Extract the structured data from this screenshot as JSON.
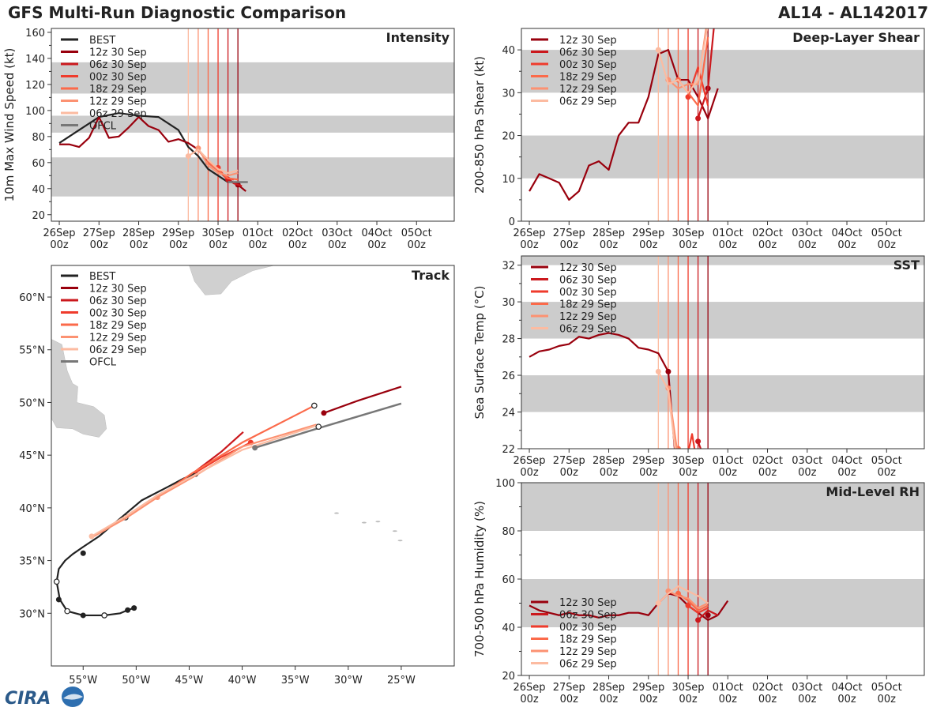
{
  "header": {
    "title": "GFS Multi-Run Diagnostic Comparison",
    "storm_id": "AL14 - AL142017"
  },
  "logo": {
    "text": "CIRA"
  },
  "time_axis": {
    "ticks": [
      "26Sep\n00z",
      "27Sep\n00z",
      "28Sep\n00z",
      "29Sep\n00z",
      "30Sep\n00z",
      "01Oct\n00z",
      "02Oct\n00z",
      "03Oct\n00z",
      "04Oct\n00z",
      "05Oct\n00z"
    ],
    "run_lines": [
      {
        "day": 3.25,
        "color": "#fcbba1"
      },
      {
        "day": 3.5,
        "color": "#fc9272"
      },
      {
        "day": 3.75,
        "color": "#fb6a4a"
      },
      {
        "day": 4.0,
        "color": "#ef3b2c"
      },
      {
        "day": 4.25,
        "color": "#cb181d"
      },
      {
        "day": 4.5,
        "color": "#99000d"
      }
    ]
  },
  "legend": {
    "best": {
      "label": "BEST",
      "color": "#222222"
    },
    "ofcl": {
      "label": "OFCL",
      "color": "#777777"
    },
    "runs": [
      {
        "label": "12z 30 Sep",
        "color": "#99000d"
      },
      {
        "label": "06z 30 Sep",
        "color": "#cb181d"
      },
      {
        "label": "00z 30 Sep",
        "color": "#ef3b2c"
      },
      {
        "label": "18z 29 Sep",
        "color": "#fb6a4a"
      },
      {
        "label": "12z 29 Sep",
        "color": "#fc9272"
      },
      {
        "label": "06z 29 Sep",
        "color": "#fcbba1"
      }
    ]
  },
  "chart_data": [
    {
      "id": "intensity",
      "type": "line",
      "title": "Intensity",
      "ylabel": "10m Max Wind Speed (kt)",
      "ylim": [
        15,
        163
      ],
      "yticks": [
        20,
        40,
        60,
        80,
        100,
        120,
        140,
        160
      ],
      "bands": [
        [
          34,
          64
        ],
        [
          83,
          96
        ],
        [
          113,
          137
        ]
      ],
      "series": [
        {
          "name": "BEST",
          "color": "#222222",
          "marker": false,
          "x": [
            0,
            0.5,
            1,
            1.5,
            2,
            2.5,
            3,
            3.25,
            3.5,
            3.75,
            4,
            4.25
          ],
          "y": [
            75,
            85,
            95,
            98,
            96,
            95,
            85,
            72,
            65,
            55,
            50,
            45
          ]
        },
        {
          "name": "12z 30 Sep",
          "color": "#99000d",
          "x": [
            0,
            0.25,
            0.5,
            0.75,
            1,
            1.25,
            1.5,
            1.75,
            2,
            2.25,
            2.5,
            2.75,
            3,
            3.25,
            3.5,
            3.75,
            4,
            4.25,
            4.5,
            4.7
          ],
          "y": [
            74,
            74,
            72,
            79,
            95,
            79,
            80,
            87,
            95,
            88,
            85,
            76,
            78,
            75,
            70,
            60,
            54,
            47,
            43,
            38
          ],
          "dot": [
            4.5,
            43
          ]
        },
        {
          "name": "06z 30 Sep",
          "color": "#cb181d",
          "x": [
            4.25,
            4.4,
            4.6
          ],
          "y": [
            47,
            44,
            42
          ],
          "dot": [
            4.25,
            47
          ]
        },
        {
          "name": "00z 30 Sep",
          "color": "#ef3b2c",
          "x": [
            4.0,
            4.2,
            4.4
          ],
          "y": [
            56,
            48,
            47
          ],
          "dot": [
            4.0,
            56
          ]
        },
        {
          "name": "18z 29 Sep",
          "color": "#fb6a4a",
          "x": [
            3.75,
            4.0,
            4.25,
            4.5
          ],
          "y": [
            60,
            54,
            48,
            47
          ],
          "dot": [
            3.75,
            60
          ]
        },
        {
          "name": "12z 29 Sep",
          "color": "#fc9272",
          "x": [
            3.5,
            3.75,
            4.0,
            4.25,
            4.5
          ],
          "y": [
            71,
            58,
            52,
            50,
            52
          ],
          "dot": [
            3.5,
            71
          ]
        },
        {
          "name": "06z 29 Sep",
          "color": "#fcbba1",
          "x": [
            3.25,
            3.5,
            3.75,
            4.0,
            4.25,
            4.5
          ],
          "y": [
            65,
            70,
            62,
            55,
            52,
            54
          ],
          "dot": [
            3.25,
            65
          ]
        },
        {
          "name": "OFCL",
          "color": "#777777",
          "width": 2.5,
          "x": [
            4.25,
            4.75
          ],
          "y": [
            45,
            45
          ]
        }
      ]
    },
    {
      "id": "shear",
      "type": "line",
      "title": "Deep-Layer Shear",
      "ylabel": "200-850 hPa Shear (kt)",
      "ylim": [
        0,
        45
      ],
      "yticks": [
        0,
        10,
        20,
        30,
        40
      ],
      "bands": [
        [
          10,
          20
        ],
        [
          30,
          40
        ]
      ],
      "series": [
        {
          "name": "12z 30 Sep",
          "color": "#99000d",
          "x": [
            0,
            0.25,
            0.5,
            0.75,
            1,
            1.25,
            1.5,
            1.75,
            2,
            2.25,
            2.5,
            2.75,
            3,
            3.25,
            3.5,
            3.75,
            4,
            4.25,
            4.5,
            4.75
          ],
          "y": [
            7,
            11,
            10,
            9,
            5,
            7,
            13,
            14,
            12,
            20,
            23,
            23,
            29,
            39,
            40,
            33,
            33,
            29,
            24,
            31
          ],
          "dot": [
            4.5,
            31
          ]
        },
        {
          "name": "06z 30 Sep",
          "color": "#cb181d",
          "x": [
            4.25,
            4.5,
            4.7
          ],
          "y": [
            24,
            31,
            50
          ],
          "dot": [
            4.25,
            24
          ]
        },
        {
          "name": "00z 30 Sep",
          "color": "#ef3b2c",
          "x": [
            4.0,
            4.25,
            4.5
          ],
          "y": [
            29,
            36,
            27
          ],
          "dot": [
            4.0,
            29
          ]
        },
        {
          "name": "18z 29 Sep",
          "color": "#fb6a4a",
          "x": [
            3.75,
            4.0,
            4.25,
            4.5
          ],
          "y": [
            33,
            30,
            27,
            43
          ],
          "dot": [
            3.75,
            33
          ]
        },
        {
          "name": "12z 29 Sep",
          "color": "#fc9272",
          "x": [
            3.5,
            3.75,
            4.0,
            4.25,
            4.5
          ],
          "y": [
            33,
            31,
            32,
            32,
            48
          ],
          "dot": [
            3.5,
            33
          ]
        },
        {
          "name": "06z 29 Sep",
          "color": "#fcbba1",
          "x": [
            3.25,
            3.5,
            3.75,
            4.0,
            4.25,
            4.5
          ],
          "y": [
            40,
            32,
            33,
            30,
            33,
            46
          ],
          "dot": [
            3.25,
            40
          ]
        }
      ]
    },
    {
      "id": "sst",
      "type": "line",
      "title": "SST",
      "ylabel": "Sea Surface Temp (°C)",
      "ylim": [
        22,
        32.5
      ],
      "yticks": [
        22,
        24,
        26,
        28,
        30,
        32
      ],
      "bands": [
        [
          24,
          26
        ],
        [
          28,
          30
        ],
        [
          32,
          32.5
        ]
      ],
      "series": [
        {
          "name": "12z 30 Sep",
          "color": "#99000d",
          "x": [
            0,
            0.25,
            0.5,
            0.75,
            1,
            1.25,
            1.5,
            1.75,
            2,
            2.25,
            2.5,
            2.75,
            3,
            3.25,
            3.5,
            3.7
          ],
          "y": [
            27.0,
            27.3,
            27.4,
            27.6,
            27.7,
            28.1,
            28.0,
            28.2,
            28.3,
            28.2,
            28.0,
            27.5,
            27.4,
            27.2,
            26.2,
            21.0
          ],
          "dot": [
            3.5,
            26.2
          ]
        },
        {
          "name": "06z 30 Sep",
          "color": "#cb181d",
          "x": [
            4.25,
            4.4
          ],
          "y": [
            22.4,
            21.5
          ],
          "dot": [
            4.25,
            22.4
          ]
        },
        {
          "name": "00z 30 Sep",
          "color": "#ef3b2c",
          "x": [
            4.0,
            4.1,
            4.2,
            4.3
          ],
          "y": [
            21.8,
            22.8,
            21.5,
            21.6
          ],
          "dot": [
            4.0,
            21.8
          ]
        },
        {
          "name": "18z 29 Sep",
          "color": "#fb6a4a",
          "x": [
            3.75,
            3.9
          ],
          "y": [
            22.0,
            21.5
          ],
          "dot": [
            3.75,
            22.0
          ]
        },
        {
          "name": "12z 29 Sep",
          "color": "#fc9272",
          "x": [
            3.5,
            3.75
          ],
          "y": [
            25.3,
            21.5
          ],
          "dot": [
            3.5,
            25.3
          ]
        },
        {
          "name": "06z 29 Sep",
          "color": "#fcbba1",
          "x": [
            3.25,
            3.5,
            3.7
          ],
          "y": [
            26.2,
            25.2,
            21.5
          ],
          "dot": [
            3.25,
            26.2
          ]
        }
      ]
    },
    {
      "id": "rh",
      "type": "line",
      "title": "Mid-Level RH",
      "ylabel": "700-500 hPa Humidity (%)",
      "ylim": [
        20,
        100
      ],
      "yticks": [
        20,
        40,
        60,
        80,
        100
      ],
      "bands": [
        [
          40,
          60
        ],
        [
          80,
          100
        ]
      ],
      "series": [
        {
          "name": "12z 30 Sep",
          "color": "#99000d",
          "x": [
            0,
            0.25,
            0.5,
            0.75,
            1,
            1.25,
            1.5,
            1.75,
            2,
            2.25,
            2.5,
            2.75,
            3,
            3.25,
            3.5,
            3.75,
            4,
            4.25,
            4.5,
            4.75
          ],
          "y": [
            49,
            47,
            46,
            45,
            46,
            45,
            45,
            44,
            45,
            45,
            46,
            46,
            45,
            50,
            54,
            53,
            49,
            46,
            43,
            45
          ],
          "dot": [
            4.5,
            45
          ],
          "tail": [
            [
              4.75,
              45
            ],
            [
              5.0,
              51
            ]
          ]
        },
        {
          "name": "06z 30 Sep",
          "color": "#cb181d",
          "x": [
            4.25,
            4.5,
            4.75
          ],
          "y": [
            43,
            47,
            45
          ],
          "dot": [
            4.25,
            43
          ]
        },
        {
          "name": "00z 30 Sep",
          "color": "#ef3b2c",
          "x": [
            4.0,
            4.25,
            4.5
          ],
          "y": [
            49,
            46,
            48
          ],
          "dot": [
            4.0,
            49
          ]
        },
        {
          "name": "18z 29 Sep",
          "color": "#fb6a4a",
          "x": [
            3.75,
            4.0,
            4.25,
            4.5
          ],
          "y": [
            54,
            51,
            47,
            49
          ],
          "dot": [
            3.75,
            54
          ]
        },
        {
          "name": "12z 29 Sep",
          "color": "#fc9272",
          "x": [
            3.5,
            3.75,
            4.0,
            4.25,
            4.5
          ],
          "y": [
            55,
            53,
            52,
            48,
            50
          ],
          "dot": [
            3.5,
            55
          ]
        },
        {
          "name": "06z 29 Sep",
          "color": "#fcbba1",
          "x": [
            3.25,
            3.5,
            3.75,
            4.0,
            4.25,
            4.5
          ],
          "y": [
            50,
            54,
            57,
            55,
            53,
            50
          ],
          "dot": [
            3.25,
            50
          ]
        }
      ]
    },
    {
      "id": "track",
      "type": "line",
      "title": "Track",
      "xlim": [
        -58,
        -20
      ],
      "ylim": [
        25,
        63
      ],
      "xticks": [
        "55°W",
        "50°W",
        "45°W",
        "40°W",
        "35°W",
        "30°W",
        "25°W"
      ],
      "xtick_values": [
        -55,
        -50,
        -45,
        -40,
        -35,
        -30,
        -25
      ],
      "yticks": [
        "30°N",
        "35°N",
        "40°N",
        "45°N",
        "50°N",
        "55°N",
        "60°N"
      ],
      "ytick_values": [
        30,
        35,
        40,
        45,
        50,
        55,
        60
      ],
      "series": [
        {
          "name": "BEST",
          "color": "#222222",
          "lon": [
            -50.2,
            -50.8,
            -51.5,
            -53.0,
            -55.0,
            -56.5,
            -57.2,
            -57.5,
            -57.3,
            -56.7,
            -56.0,
            -55.0,
            -53.5,
            -51.5,
            -49.5,
            -47.0,
            -45.5,
            -44.5
          ],
          "lat": [
            30.5,
            30.3,
            30.0,
            29.8,
            29.8,
            30.2,
            31.3,
            33.0,
            34.2,
            35.0,
            35.6,
            36.3,
            37.3,
            39.0,
            40.7,
            42.0,
            42.8,
            43.2
          ],
          "filled": [
            [
              -50.2,
              30.5
            ],
            [
              -50.8,
              30.3
            ],
            [
              -55.0,
              29.8
            ],
            [
              -57.3,
              31.3
            ],
            [
              -55.0,
              35.7
            ],
            [
              -44.4,
              43.2
            ]
          ],
          "hollow": [
            [
              -53.0,
              29.8
            ],
            [
              -56.5,
              30.2
            ],
            [
              -57.5,
              33.0
            ],
            [
              -51.0,
              39.1
            ]
          ]
        },
        {
          "name": "12z 30 Sep",
          "color": "#99000d",
          "lon": [
            -32.3,
            -29.0,
            -25.0
          ],
          "lat": [
            49.0,
            50.2,
            51.5
          ],
          "dot": [
            -32.3,
            49.0
          ]
        },
        {
          "name": "06z 30 Sep",
          "color": "#cb181d",
          "lon": [
            -44.5,
            -42.0,
            -39.9
          ],
          "lat": [
            43.4,
            45.3,
            47.2
          ]
        },
        {
          "name": "00z 30 Sep",
          "color": "#ef3b2c",
          "lon": [
            -44.5,
            -42.0,
            -39.2
          ],
          "lat": [
            43.3,
            44.8,
            46.2
          ],
          "dot": [
            -39.2,
            46.2
          ]
        },
        {
          "name": "18z 29 Sep",
          "color": "#fb6a4a",
          "lon": [
            -48.0,
            -44.7,
            -40.0,
            -33.2
          ],
          "lat": [
            41.0,
            43.3,
            46.2,
            49.7
          ]
        },
        {
          "name": "12z 29 Sep",
          "color": "#fc9272",
          "lon": [
            -54.0,
            -51.0,
            -48.0,
            -44.5,
            -40.0,
            -33.0
          ],
          "lat": [
            37.3,
            39.0,
            41.0,
            43.0,
            45.8,
            47.9
          ],
          "dot": [
            -48.0,
            41.0
          ]
        },
        {
          "name": "06z 29 Sep",
          "color": "#fcbba1",
          "lon": [
            -54.2,
            -51.0,
            -48.0,
            -44.5,
            -40.0,
            -33.0
          ],
          "lat": [
            37.3,
            39.2,
            41.2,
            43.1,
            45.5,
            47.8
          ],
          "dot": [
            -54.2,
            37.3
          ]
        },
        {
          "name": "OFCL",
          "color": "#777777",
          "width": 2.5,
          "lon": [
            -38.8,
            -33.0,
            -25.0
          ],
          "lat": [
            45.7,
            47.5,
            49.9
          ],
          "dot": [
            -38.8,
            45.7
          ],
          "hollow": [
            [
              -32.8,
              47.7
            ],
            [
              -33.2,
              49.7
            ]
          ]
        }
      ]
    }
  ]
}
